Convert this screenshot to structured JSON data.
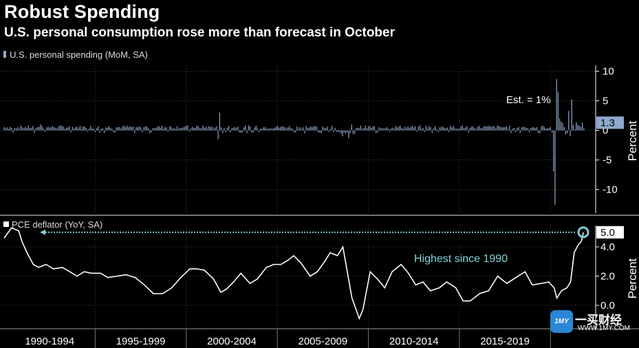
{
  "title": "Robust Spending",
  "subtitle": "U.S. personal consumption rose more than forecast in October",
  "chart_data": [
    {
      "type": "bar",
      "legend": "U.S. personal spending (MoM, SA)",
      "ylabel": "Percent",
      "ylim": [
        -14,
        11
      ],
      "yticks": [
        "10",
        "5",
        "0",
        "-5",
        "-10"
      ],
      "ytick_values": [
        10,
        5,
        0,
        -5,
        -10
      ],
      "last_value_label": "1.3",
      "last_value": 1.3,
      "annotation": "Est. = 1%",
      "color": "#8fa8cc",
      "x_start": 1990.0,
      "x_end": 2021.8,
      "spikes": [
        {
          "x": 1992.0,
          "y": 1.0
        },
        {
          "x": 2001.83,
          "y": 3.0
        },
        {
          "x": 2001.75,
          "y": -1.5
        },
        {
          "x": 2008.6,
          "y": -1.0
        },
        {
          "x": 2008.9,
          "y": -1.3
        },
        {
          "x": 2009.1,
          "y": 1.0
        },
        {
          "x": 2020.17,
          "y": -6.9
        },
        {
          "x": 2020.25,
          "y": -12.6
        },
        {
          "x": 2020.33,
          "y": 8.7
        },
        {
          "x": 2020.42,
          "y": 6.5
        },
        {
          "x": 2020.5,
          "y": 2.0
        },
        {
          "x": 2020.58,
          "y": 1.5
        },
        {
          "x": 2020.67,
          "y": 1.2
        },
        {
          "x": 2020.83,
          "y": -0.7
        },
        {
          "x": 2020.92,
          "y": -0.5
        },
        {
          "x": 2021.0,
          "y": 3.3
        },
        {
          "x": 2021.08,
          "y": -1.0
        },
        {
          "x": 2021.17,
          "y": 5.2
        },
        {
          "x": 2021.25,
          "y": 0.9
        },
        {
          "x": 2021.33,
          "y": 0.2
        },
        {
          "x": 2021.42,
          "y": 1.4
        },
        {
          "x": 2021.5,
          "y": 0.9
        },
        {
          "x": 2021.58,
          "y": 0.8
        },
        {
          "x": 2021.67,
          "y": 0.6
        },
        {
          "x": 2021.75,
          "y": 1.3
        }
      ]
    },
    {
      "type": "line",
      "legend": "PCE deflator (YoY, SA)",
      "ylabel": "Percent",
      "ylim": [
        -1.6,
        5.6
      ],
      "yticks": [
        "4.0",
        "2.0",
        "0.0"
      ],
      "ytick_values": [
        4.0,
        2.0,
        0.0
      ],
      "last_value_label": "5.0",
      "last_value": 5.0,
      "annotation": "Highest since 1990",
      "color": "#ffffff",
      "highlight_color": "#7fd3d8",
      "points": [
        [
          1990.0,
          4.6
        ],
        [
          1990.4,
          5.3
        ],
        [
          1990.8,
          5.1
        ],
        [
          1991.0,
          4.3
        ],
        [
          1991.3,
          3.5
        ],
        [
          1991.6,
          2.8
        ],
        [
          1991.9,
          2.6
        ],
        [
          1992.3,
          2.8
        ],
        [
          1992.7,
          2.5
        ],
        [
          1993.2,
          2.6
        ],
        [
          1993.6,
          2.3
        ],
        [
          1994.0,
          2.0
        ],
        [
          1994.4,
          2.3
        ],
        [
          1994.8,
          2.2
        ],
        [
          1995.3,
          2.2
        ],
        [
          1995.7,
          1.9
        ],
        [
          1996.2,
          2.0
        ],
        [
          1996.7,
          2.1
        ],
        [
          1997.2,
          1.9
        ],
        [
          1997.7,
          1.4
        ],
        [
          1998.2,
          0.8
        ],
        [
          1998.7,
          0.8
        ],
        [
          1999.2,
          1.2
        ],
        [
          1999.7,
          1.9
        ],
        [
          2000.2,
          2.5
        ],
        [
          2000.6,
          2.5
        ],
        [
          2001.0,
          2.4
        ],
        [
          2001.5,
          1.8
        ],
        [
          2001.9,
          0.9
        ],
        [
          2002.2,
          1.1
        ],
        [
          2002.6,
          1.6
        ],
        [
          2003.0,
          2.2
        ],
        [
          2003.5,
          1.5
        ],
        [
          2003.9,
          1.8
        ],
        [
          2004.4,
          2.6
        ],
        [
          2004.8,
          2.8
        ],
        [
          2005.2,
          2.8
        ],
        [
          2005.6,
          3.1
        ],
        [
          2005.9,
          3.4
        ],
        [
          2006.3,
          2.9
        ],
        [
          2006.8,
          2.0
        ],
        [
          2007.2,
          2.3
        ],
        [
          2007.6,
          3.0
        ],
        [
          2007.9,
          3.6
        ],
        [
          2008.3,
          3.4
        ],
        [
          2008.6,
          4.0
        ],
        [
          2008.8,
          2.6
        ],
        [
          2009.1,
          0.5
        ],
        [
          2009.5,
          -0.9
        ],
        [
          2009.7,
          -0.3
        ],
        [
          2010.1,
          2.3
        ],
        [
          2010.5,
          1.8
        ],
        [
          2010.9,
          1.2
        ],
        [
          2011.3,
          2.3
        ],
        [
          2011.8,
          2.8
        ],
        [
          2012.2,
          2.2
        ],
        [
          2012.6,
          1.4
        ],
        [
          2013.0,
          1.6
        ],
        [
          2013.4,
          1.0
        ],
        [
          2013.9,
          1.2
        ],
        [
          2014.3,
          1.6
        ],
        [
          2014.8,
          1.2
        ],
        [
          2015.2,
          0.3
        ],
        [
          2015.6,
          0.3
        ],
        [
          2016.1,
          0.8
        ],
        [
          2016.6,
          1.0
        ],
        [
          2017.1,
          2.0
        ],
        [
          2017.6,
          1.5
        ],
        [
          2018.1,
          1.9
        ],
        [
          2018.6,
          2.3
        ],
        [
          2019.0,
          1.4
        ],
        [
          2019.5,
          1.5
        ],
        [
          2019.9,
          1.6
        ],
        [
          2020.2,
          1.2
        ],
        [
          2020.35,
          0.5
        ],
        [
          2020.6,
          1.0
        ],
        [
          2020.9,
          1.2
        ],
        [
          2021.1,
          1.6
        ],
        [
          2021.3,
          3.6
        ],
        [
          2021.5,
          4.1
        ],
        [
          2021.7,
          4.4
        ],
        [
          2021.8,
          5.0
        ]
      ]
    }
  ],
  "x_axis": {
    "labels": [
      "1990-1994",
      "1995-1999",
      "2000-2004",
      "2005-2009",
      "2010-2014",
      "2015-2019"
    ],
    "label_starts": [
      1990,
      1995,
      2000,
      2005,
      2010,
      2015
    ],
    "gridlines": [
      1995,
      2000,
      2005,
      2010,
      2015,
      2020
    ]
  },
  "watermark": {
    "logo_text": "1MY",
    "cn": "一买财经",
    "en": "WWW.1MY.COM"
  }
}
